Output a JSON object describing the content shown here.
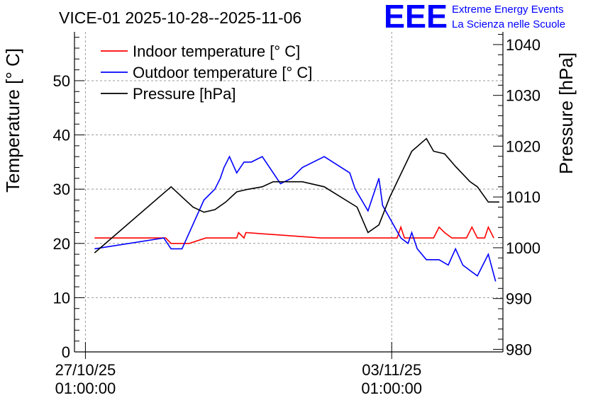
{
  "logo": {
    "letters": "EEE",
    "line1": "Extreme Energy Events",
    "line2": "La Scienza nelle Scuole",
    "color": "#0000ff"
  },
  "chart_data": {
    "type": "line",
    "title": "VICE-01 2025-10-28--2025-11-06",
    "ylabel": "Temperature [° C]",
    "y2label": "Pressure [hPa]",
    "xlim": [
      "2025-10-26T19:00",
      "2025-11-05T14:00"
    ],
    "ylim": [
      0,
      59
    ],
    "y2lim": [
      979.5,
      1042.5
    ],
    "grid": true,
    "legend_position": "top-left",
    "x_ticks": [
      {
        "date": "27/10/25",
        "time": "01:00:00",
        "x": "2025-10-27T01:00"
      },
      {
        "date": "03/11/25",
        "time": "01:00:00",
        "x": "2025-11-03T01:00"
      }
    ],
    "y_ticks": [
      0,
      10,
      20,
      30,
      40,
      50
    ],
    "y2_ticks": [
      980,
      990,
      1000,
      1010,
      1020,
      1030,
      1040
    ],
    "series": [
      {
        "name": "Indoor temperature [° C]",
        "color": "#ff0000",
        "axis": "left",
        "x": [
          "2025-10-27T06:00",
          "2025-10-28T21:00",
          "2025-10-29T00:00",
          "2025-10-29T06:00",
          "2025-10-29T10:00",
          "2025-10-29T19:00",
          "2025-10-30T12:00",
          "2025-10-30T13:00",
          "2025-10-30T16:00",
          "2025-10-30T17:00",
          "2025-11-01T10:00",
          "2025-11-02T13:00",
          "2025-11-02T21:00",
          "2025-11-03T04:00",
          "2025-11-03T06:00",
          "2025-11-03T08:00",
          "2025-11-03T10:00",
          "2025-11-03T13:00",
          "2025-11-04T00:00",
          "2025-11-04T03:00",
          "2025-11-04T06:00",
          "2025-11-04T10:00",
          "2025-11-04T12:00",
          "2025-11-04T18:00",
          "2025-11-04T21:00",
          "2025-11-05T00:00",
          "2025-11-05T04:00",
          "2025-11-05T06:00",
          "2025-11-05T09:00"
        ],
        "y": [
          21,
          21,
          20,
          20,
          20,
          21,
          21,
          22,
          21,
          22,
          21,
          21,
          21,
          21,
          23,
          21,
          21,
          21,
          21,
          23,
          22,
          21,
          21,
          21,
          23,
          21,
          21,
          23,
          21
        ]
      },
      {
        "name": "Outdoor temperature [° C]",
        "color": "#0000ff",
        "axis": "left",
        "x": [
          "2025-10-27T06:00",
          "2025-10-28T20:00",
          "2025-10-29T00:00",
          "2025-10-29T06:00",
          "2025-10-29T18:00",
          "2025-10-30T00:00",
          "2025-10-30T03:00",
          "2025-10-30T05:00",
          "2025-10-30T08:00",
          "2025-10-30T12:00",
          "2025-10-30T16:00",
          "2025-10-30T20:00",
          "2025-10-31T02:00",
          "2025-10-31T08:00",
          "2025-10-31T12:00",
          "2025-10-31T18:00",
          "2025-11-01T00:00",
          "2025-11-01T12:00",
          "2025-11-02T02:00",
          "2025-11-02T05:00",
          "2025-11-02T12:00",
          "2025-11-02T18:00",
          "2025-11-02T20:00",
          "2025-11-03T06:00",
          "2025-11-03T10:00",
          "2025-11-03T12:00",
          "2025-11-03T15:00",
          "2025-11-03T20:00",
          "2025-11-04T00:00",
          "2025-11-04T03:00",
          "2025-11-04T08:00",
          "2025-11-04T12:00",
          "2025-11-04T16:00",
          "2025-11-04T20:00",
          "2025-11-05T00:00",
          "2025-11-05T03:00",
          "2025-11-05T06:00",
          "2025-11-05T10:00"
        ],
        "y": [
          19,
          21,
          19,
          19,
          28,
          30,
          32,
          34,
          36,
          33,
          35,
          35,
          36,
          33,
          31,
          32,
          34,
          36,
          33,
          30,
          26,
          32,
          27,
          21,
          20,
          22,
          19,
          17,
          17,
          17,
          16,
          19,
          16,
          15,
          14,
          16,
          18,
          13
        ]
      },
      {
        "name": "Pressure [hPa]",
        "color": "#000000",
        "axis": "right",
        "x": [
          "2025-10-27T06:00",
          "2025-10-29T00:00",
          "2025-10-29T06:00",
          "2025-10-29T12:00",
          "2025-10-29T18:00",
          "2025-10-30T00:00",
          "2025-10-30T06:00",
          "2025-10-30T12:00",
          "2025-10-30T18:00",
          "2025-10-31T02:00",
          "2025-10-31T08:00",
          "2025-11-01T00:00",
          "2025-11-01T12:00",
          "2025-11-02T06:00",
          "2025-11-02T12:00",
          "2025-11-02T18:00",
          "2025-11-03T00:00",
          "2025-11-03T12:00",
          "2025-11-03T20:00",
          "2025-11-04T00:00",
          "2025-11-04T06:00",
          "2025-11-04T12:00",
          "2025-11-04T20:00",
          "2025-11-05T00:00",
          "2025-11-05T06:00",
          "2025-11-05T12:00"
        ],
        "y": [
          999,
          1012,
          1010,
          1008,
          1007,
          1007.5,
          1009,
          1011,
          1011.5,
          1012,
          1013,
          1013,
          1012,
          1008,
          1003,
          1004.5,
          1010,
          1019,
          1021.5,
          1019,
          1018.5,
          1016,
          1013,
          1012,
          1009,
          1009
        ]
      }
    ]
  }
}
